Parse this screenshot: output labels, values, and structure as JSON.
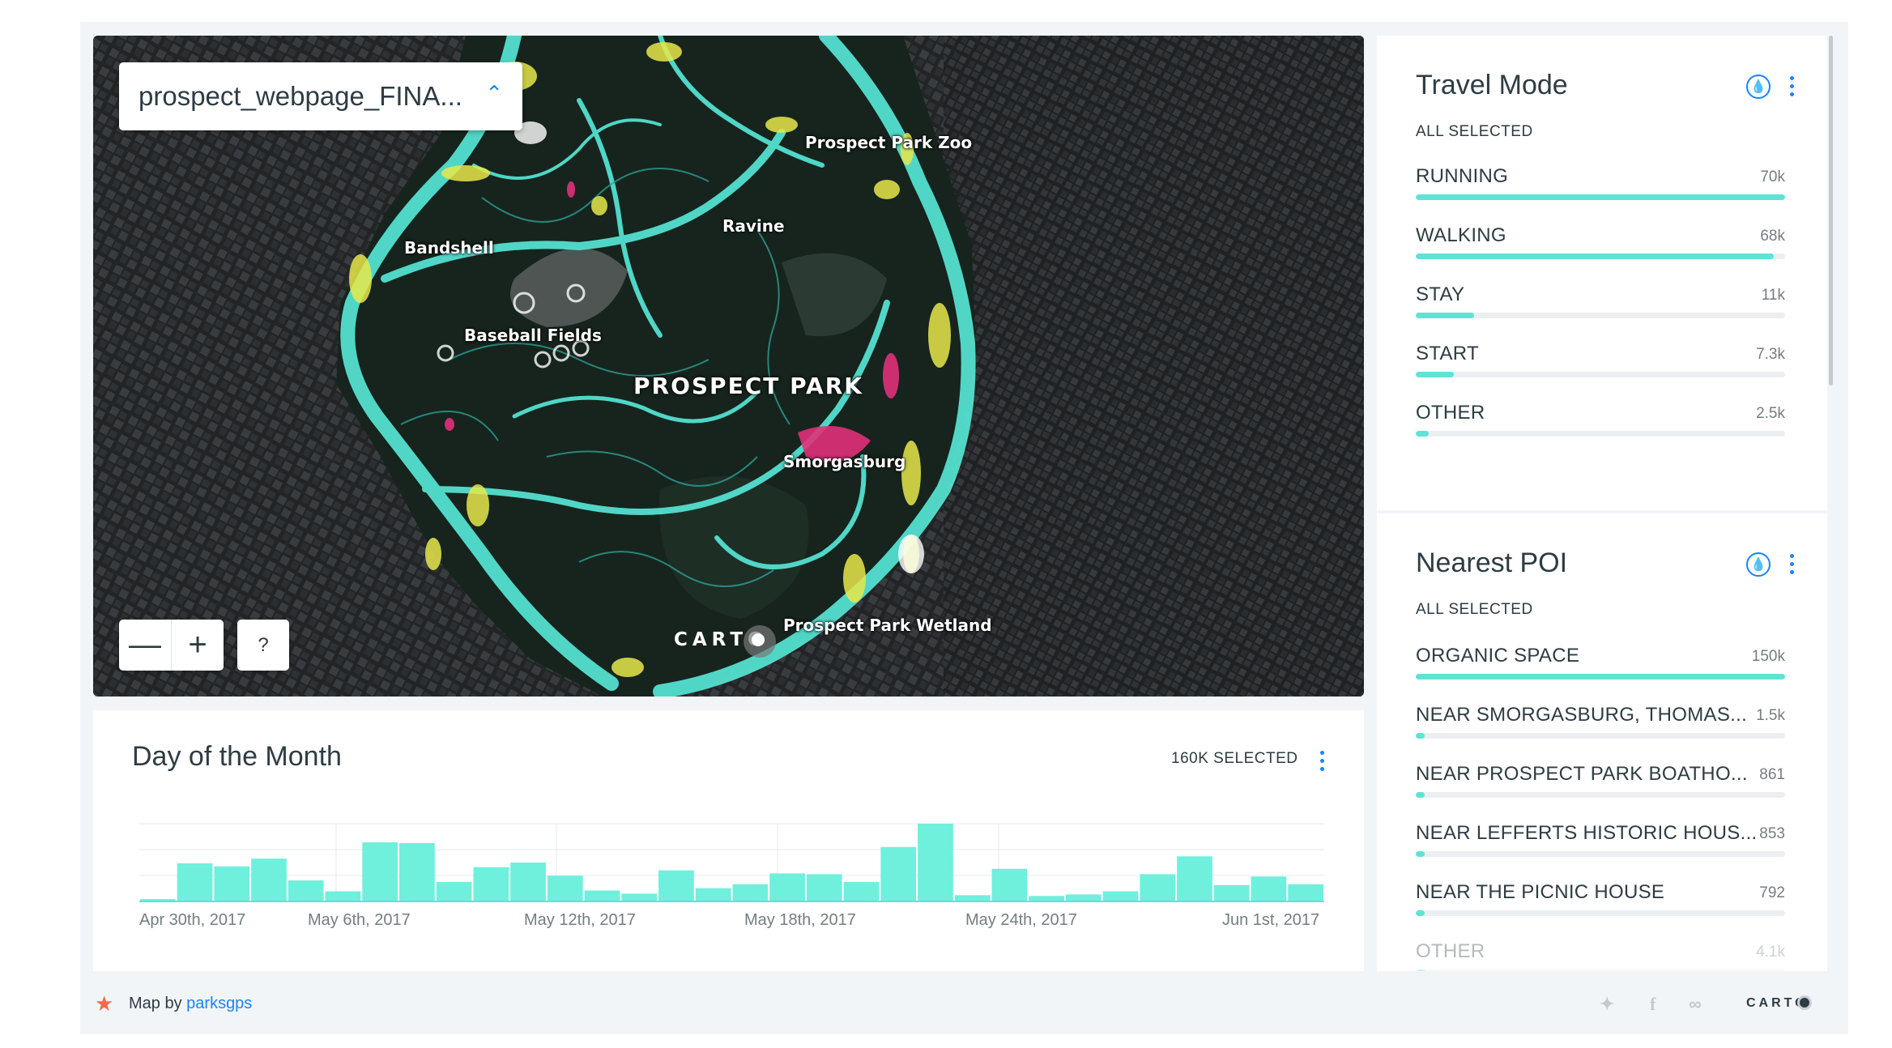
{
  "map": {
    "layer_name": "prospect_webpage_FINA...",
    "zoom_out": "—",
    "zoom_in": "+",
    "help": "?",
    "labels": {
      "zoo": "Prospect Park Zoo",
      "ravine": "Ravine",
      "bandshell": "Bandshell",
      "baseball": "Baseball Fields",
      "park": "PROSPECT PARK",
      "smorgasburg": "Smorgasburg",
      "wetland": "Prospect Park Wetland"
    },
    "attribution_logo": "CARTO"
  },
  "travel_mode": {
    "title": "Travel Mode",
    "selection": "ALL SELECTED",
    "items": [
      {
        "label": "RUNNING",
        "value": "70k",
        "fraction": 1.0
      },
      {
        "label": "WALKING",
        "value": "68k",
        "fraction": 0.97
      },
      {
        "label": "STAY",
        "value": "11k",
        "fraction": 0.157
      },
      {
        "label": "START",
        "value": "7.3k",
        "fraction": 0.104
      },
      {
        "label": "OTHER",
        "value": "2.5k",
        "fraction": 0.036
      }
    ]
  },
  "nearest_poi": {
    "title": "Nearest POI",
    "selection": "ALL SELECTED",
    "items": [
      {
        "label": "ORGANIC SPACE",
        "value": "150k",
        "fraction": 1.0
      },
      {
        "label": "NEAR SMORGASBURG, THOMAS...",
        "value": "1.5k",
        "fraction": 0.01
      },
      {
        "label": "NEAR PROSPECT PARK BOATHO...",
        "value": "861",
        "fraction": 0.006
      },
      {
        "label": "NEAR LEFFERTS HISTORIC HOUS...",
        "value": "853",
        "fraction": 0.006
      },
      {
        "label": "NEAR THE PICNIC HOUSE",
        "value": "792",
        "fraction": 0.005
      },
      {
        "label": "OTHER",
        "value": "4.1k",
        "fraction": 0.027
      }
    ]
  },
  "histogram": {
    "title": "Day of the Month",
    "selection": "160K SELECTED",
    "x_ticks": [
      "Apr 30th, 2017",
      "May 6th, 2017",
      "May 12th, 2017",
      "May 18th, 2017",
      "May 24th, 2017",
      "Jun 1st, 2017"
    ]
  },
  "chart_data": {
    "type": "bar",
    "title": "Day of the Month",
    "xlabel": "",
    "ylabel": "",
    "x_tick_labels": [
      "Apr 30th, 2017",
      "May 6th, 2017",
      "May 12th, 2017",
      "May 18th, 2017",
      "May 24th, 2017",
      "Jun 1st, 2017"
    ],
    "relative_values": [
      0.03,
      0.49,
      0.45,
      0.55,
      0.27,
      0.13,
      0.76,
      0.75,
      0.25,
      0.44,
      0.5,
      0.33,
      0.14,
      0.1,
      0.4,
      0.17,
      0.22,
      0.36,
      0.35,
      0.25,
      0.7,
      1.0,
      0.08,
      0.42,
      0.07,
      0.09,
      0.13,
      0.35,
      0.58,
      0.21,
      0.32,
      0.22
    ],
    "color": "#6ef0dd",
    "grid": true
  },
  "footer": {
    "map_by": "Map by",
    "author": "parksgps",
    "logo": "CARTO"
  },
  "colors": {
    "accent": "#1785fb",
    "bar": "#5ee3d4",
    "star": "#f26a4a"
  }
}
